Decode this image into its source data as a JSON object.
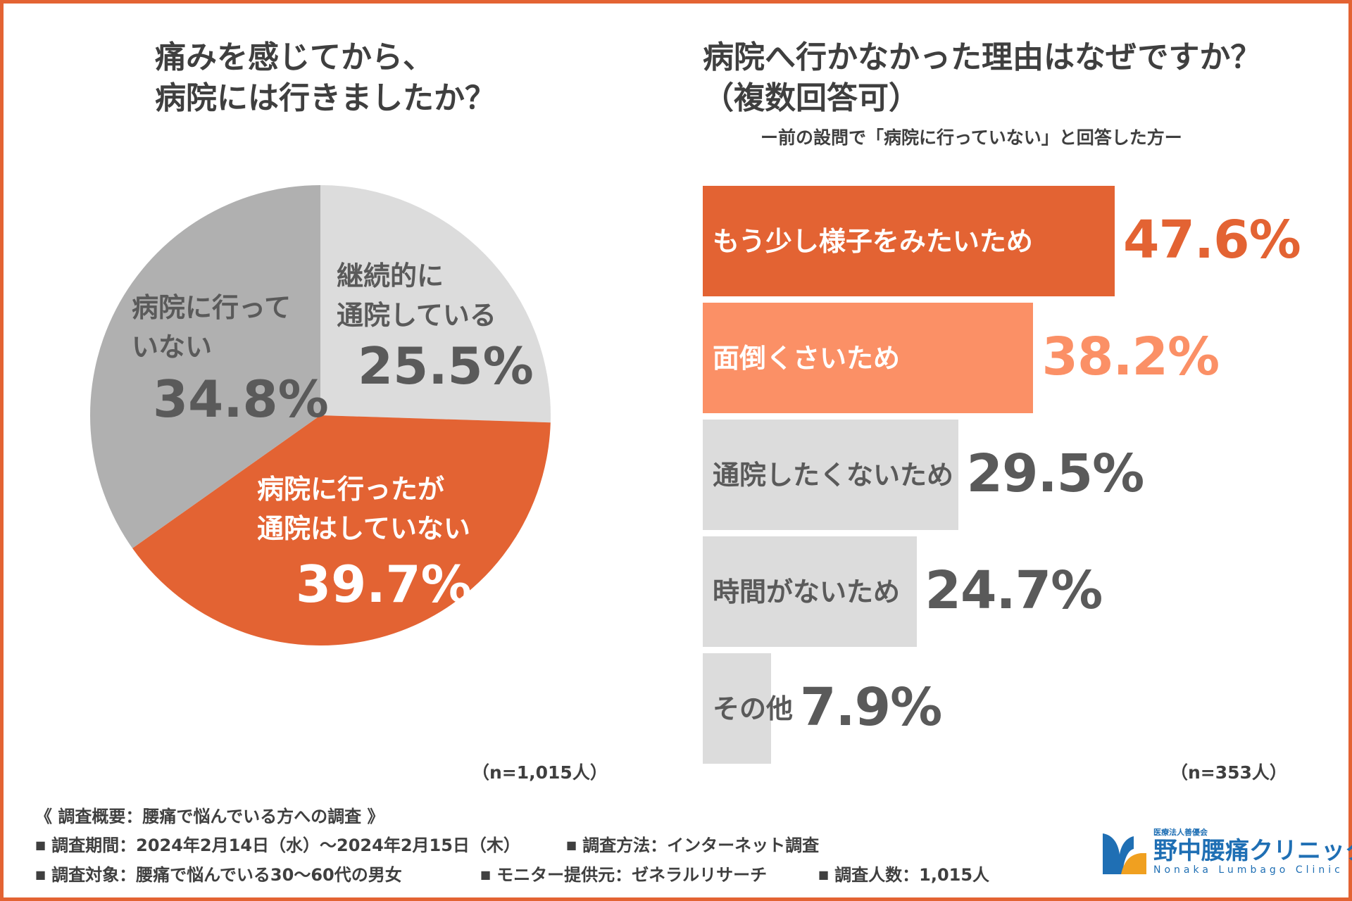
{
  "colors": {
    "border": "#e36333",
    "orange": "#e36333",
    "light_orange": "#fb9066",
    "light_gray": "#dcdcdc",
    "mid_gray": "#b0b0b0",
    "text_dark": "#5a5a5a",
    "white": "#ffffff"
  },
  "pie": {
    "title_line1": "痛みを感じてから、",
    "title_line2": "病院には行きましたか？",
    "n_label": "（n=1,015人）"
  },
  "bar": {
    "title_line1": "病院へ行かなかった理由はなぜですか？",
    "title_line2": "（複数回答可）",
    "subtitle": "ー前の設問で「病院に行っていない」と回答した方ー",
    "n_label": "（n=353人）"
  },
  "chart_data": [
    {
      "type": "pie",
      "title": "痛みを感じてから、病院には行きましたか？",
      "slices": [
        {
          "label_lines": [
            "継続的に",
            "通院している"
          ],
          "value": 25.5,
          "value_label": "25.5%",
          "color": "#dcdcdc",
          "text_color": "#5a5a5a"
        },
        {
          "label_lines": [
            "病院に行ったが",
            "通院はしていない"
          ],
          "value": 39.7,
          "value_label": "39.7%",
          "color": "#e36333",
          "text_color": "#ffffff"
        },
        {
          "label_lines": [
            "病院に行って",
            "いない"
          ],
          "value": 34.8,
          "value_label": "34.8%",
          "color": "#b0b0b0",
          "text_color": "#5a5a5a"
        }
      ]
    },
    {
      "type": "bar",
      "orientation": "horizontal",
      "title": "病院へ行かなかった理由はなぜですか？（複数回答可）",
      "categories": [
        "もう少し様子をみたいため",
        "面倒くさいため",
        "通院したくないため",
        "時間がないため",
        "その他"
      ],
      "values": [
        47.6,
        38.2,
        29.5,
        24.7,
        7.9
      ],
      "value_labels": [
        "47.6%",
        "38.2%",
        "29.5%",
        "24.7%",
        "7.9%"
      ],
      "bar_colors": [
        "#e36333",
        "#fb9066",
        "#dcdcdc",
        "#dcdcdc",
        "#dcdcdc"
      ],
      "label_colors": [
        "#ffffff",
        "#ffffff",
        "#5a5a5a",
        "#5a5a5a",
        "#5a5a5a"
      ],
      "value_colors": [
        "#e36333",
        "#fb9066",
        "#5a5a5a",
        "#5a5a5a",
        "#5a5a5a"
      ]
    }
  ],
  "survey": {
    "heading": "《 調査概要：腰痛で悩んでいる方への調査 》",
    "period": "調査期間：2024年2月14日（水）〜2024年2月15日（木）",
    "method": "調査方法：インターネット調査",
    "target": "調査対象：腰痛で悩んでいる30〜60代の男女",
    "provider": "モニター提供元：ゼネラルリサーチ",
    "count": "調査人数：1,015人",
    "bullet": "■"
  },
  "logo": {
    "org": "医療法人善優会",
    "name": "野中腰痛クリニック",
    "english": "Nonaka Lumbago Clinic"
  }
}
